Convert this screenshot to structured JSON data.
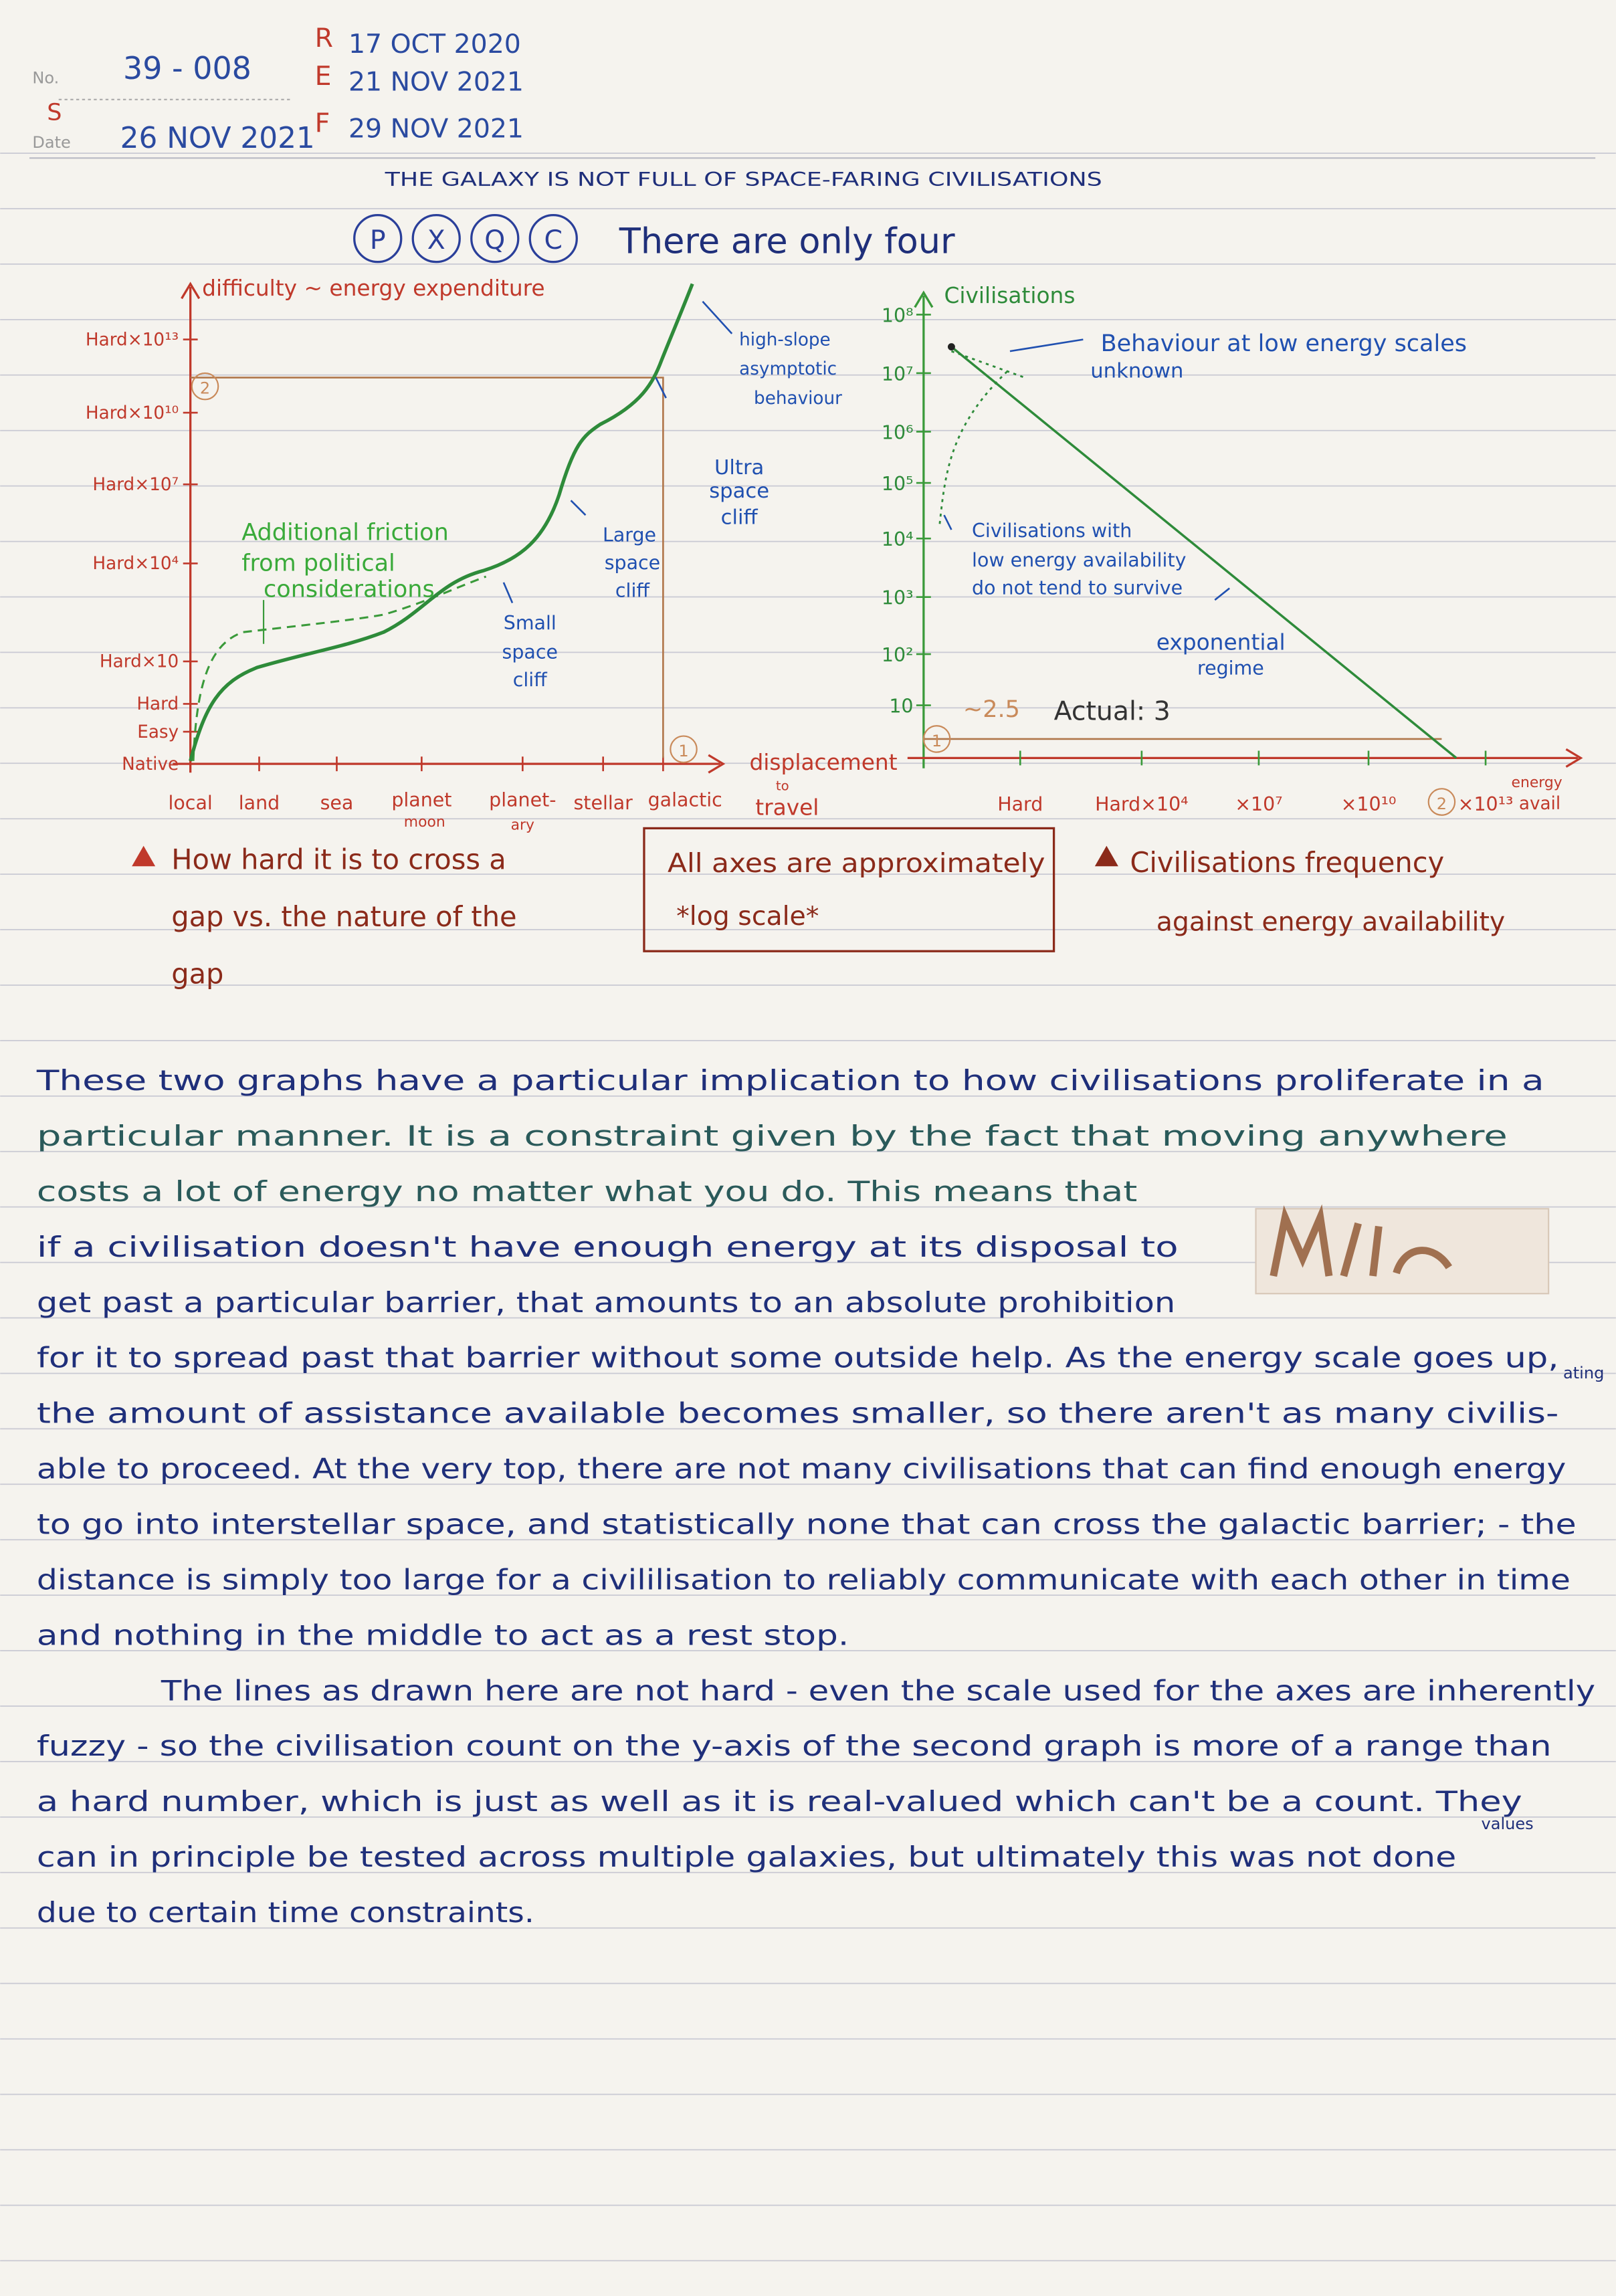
{
  "header": {
    "no_label": "No.",
    "number": "39 - 008",
    "s_mark": "S",
    "date_label": "Date",
    "date": "26 NOV 2021",
    "ref_letters": [
      "R",
      "E",
      "F"
    ],
    "ref_dates": [
      "17 OCT 2020",
      "21 NOV 2021",
      "29 NOV 2021"
    ]
  },
  "title": "THE GALAXY IS NOT FULL OF SPACE-FARING CIVILISATIONS",
  "tags": [
    "P",
    "X",
    "Q",
    "C"
  ],
  "heading": "There are only four",
  "graph_1": {
    "y_label": "difficulty ~ energy expenditure",
    "y_levels": [
      "Hard×10¹³",
      "Hard×10¹⁰",
      "Hard×10⁷",
      "Hard×10⁴",
      "Hard×10",
      "Hard",
      "Easy",
      "Native"
    ],
    "x_categories": [
      "local",
      "land",
      "sea",
      "planet",
      "moon",
      "planet-",
      "ary",
      "stellar",
      "galactic"
    ],
    "x_label_lines": [
      "displacement",
      "to",
      "travel"
    ],
    "markers": [
      "2",
      "1"
    ],
    "friction_note": [
      "Additional friction",
      "from political",
      "considerations"
    ],
    "small_cliff": [
      "Small",
      "space",
      "cliff"
    ],
    "large_cliff": [
      "Large",
      "space",
      "cliff"
    ],
    "ultra_cliff": [
      "Ultra",
      "space",
      "cliff"
    ],
    "asymptote_note": [
      "high-slope",
      "asymptotic",
      "behaviour"
    ]
  },
  "graph_2": {
    "y_label": "Civilisations",
    "y_levels": [
      "10⁸",
      "10⁷",
      "10⁶",
      "10⁵",
      "10⁴",
      "10³",
      "10²",
      "10"
    ],
    "x_categories": [
      "Hard",
      "Hard×10⁴",
      "×10⁷",
      "×10¹⁰",
      "×10¹³"
    ],
    "x_label_lines": [
      "energy",
      "avail"
    ],
    "markers": [
      "1",
      "2"
    ],
    "low_energy_note": [
      "Behaviour at low energy scales",
      "unknown"
    ],
    "survival_note": [
      "Civilisations with",
      "low energy availability",
      "do not tend to survive"
    ],
    "regime_note": [
      "exponential",
      "regime"
    ],
    "estimate": "~2.5",
    "actual": "Actual: 3"
  },
  "captions": {
    "left": [
      "How hard it is to cross a",
      "gap vs. the nature of the",
      "gap"
    ],
    "middle": [
      "All axes are approximately",
      "*log scale*"
    ],
    "right": [
      "Civilisations frequency",
      "against energy availability"
    ]
  },
  "body": [
    "These two graphs have a particular implication to how civilisations proliferate in a",
    "particular manner. It is a constraint given by the fact that moving anywhere",
    "costs a lot of energy no matter what you do. This means that",
    "if a civilisation doesn't have enough energy at its disposal to",
    "get past a particular barrier, that amounts to an absolute prohibition",
    "for it to spread past that barrier without some outside help. As the energy scale goes up,",
    "the amount of assistance available becomes smaller, so there aren't as many civilis-",
    "able to proceed. At the very top, there are not many civilisations that can find enough energy",
    "to go into interstellar space, and statistically none that can cross the galactic barrier; - the",
    "distance is simply too large for a civililisation to reliably communicate with each other in time",
    "and nothing in the middle to act as a rest stop.",
    "The lines as drawn here are not hard - even the scale used for the axes are inherently",
    "fuzzy - so the civilisation count on the y-axis of the second graph is more of a range than",
    "a hard number, which is just as well as it is real-valued which can't be a count. They",
    "can in principle be tested across multiple galaxies, but ultimately this was not done",
    "due to certain time constraints."
  ],
  "insertions": [
    "ating",
    "values"
  ]
}
